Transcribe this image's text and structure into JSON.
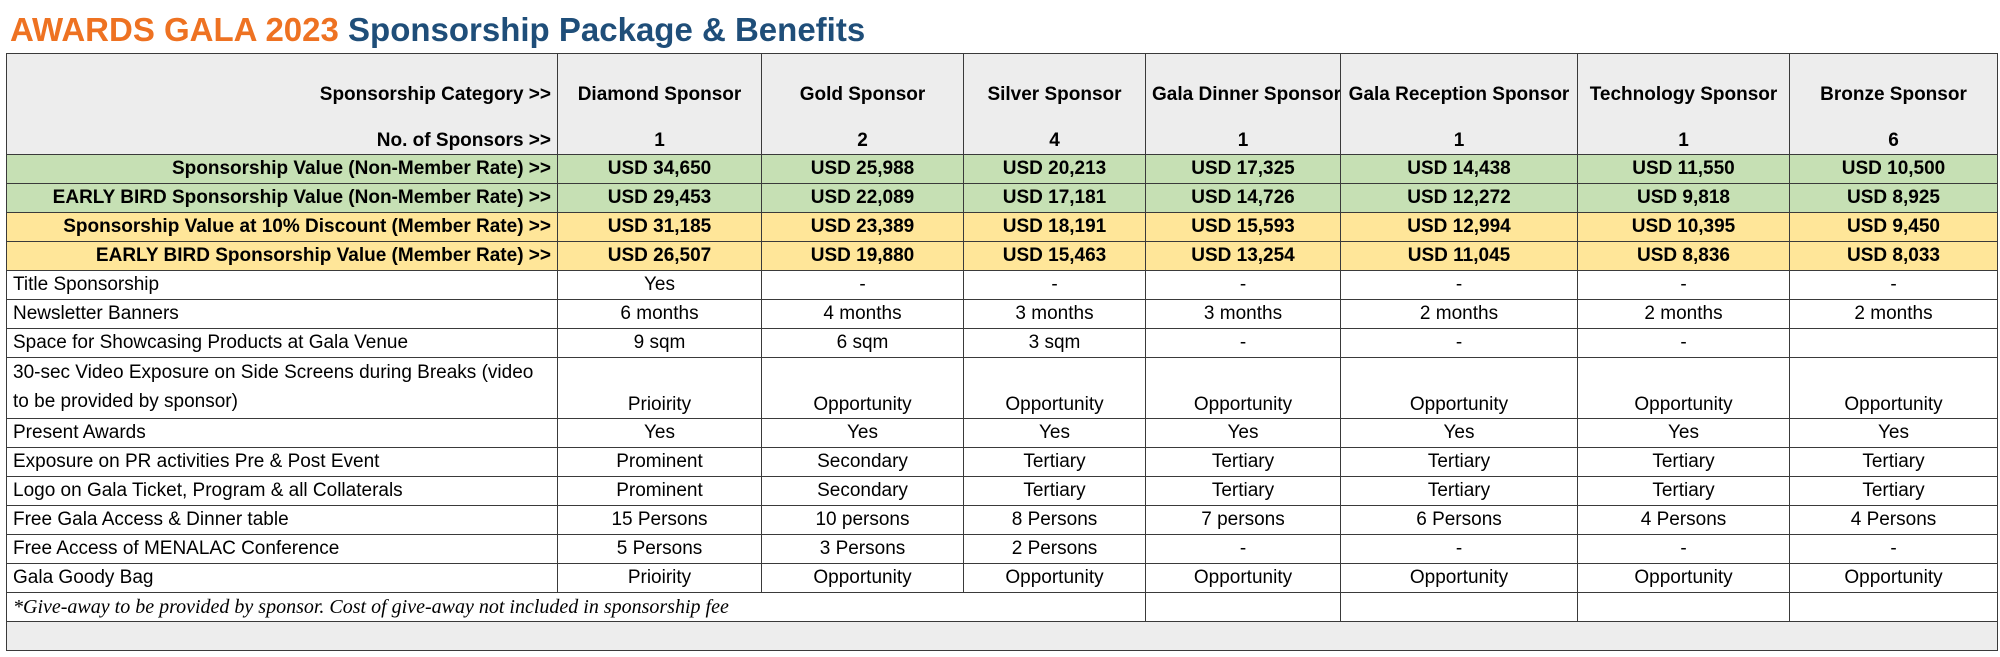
{
  "title": {
    "part1": "AWARDS GALA 2023",
    "part2": "Sponsorship Package & Benefits"
  },
  "header": {
    "category_label": "Sponsorship Category >>",
    "count_label": "No. of Sponsors >>",
    "sponsors": [
      {
        "name": "Diamond Sponsor",
        "count": "1"
      },
      {
        "name": "Gold Sponsor",
        "count": "2"
      },
      {
        "name": "Silver Sponsor",
        "count": "4"
      },
      {
        "name": "Gala Dinner Sponsor",
        "count": "1"
      },
      {
        "name": "Gala Reception Sponsor",
        "count": "1"
      },
      {
        "name": "Technology Sponsor",
        "count": "1"
      },
      {
        "name": "Bronze Sponsor",
        "count": "6"
      }
    ]
  },
  "prices": [
    {
      "label": "Sponsorship Value (Non-Member Rate) >>",
      "tone": "green",
      "values": [
        "USD 34,650",
        "USD 25,988",
        "USD 20,213",
        "USD 17,325",
        "USD 14,438",
        "USD 11,550",
        "USD 10,500"
      ]
    },
    {
      "label": "EARLY BIRD Sponsorship Value (Non-Member Rate) >>",
      "tone": "green",
      "values": [
        "USD 29,453",
        "USD 22,089",
        "USD 17,181",
        "USD 14,726",
        "USD 12,272",
        "USD 9,818",
        "USD 8,925"
      ]
    },
    {
      "label": "Sponsorship Value at 10% Discount (Member Rate) >>",
      "tone": "yellow",
      "values": [
        "USD 31,185",
        "USD 23,389",
        "USD 18,191",
        "USD 15,593",
        "USD 12,994",
        "USD 10,395",
        "USD 9,450"
      ]
    },
    {
      "label": "EARLY BIRD Sponsorship Value (Member Rate) >>",
      "tone": "yellow",
      "values": [
        "USD 26,507",
        "USD 19,880",
        "USD 15,463",
        "USD 13,254",
        "USD 11,045",
        "USD 8,836",
        "USD 8,033"
      ]
    }
  ],
  "benefits": [
    {
      "label": "Title Sponsorship",
      "tall": false,
      "values": [
        "Yes",
        "-",
        "-",
        "-",
        "-",
        "-",
        "-"
      ]
    },
    {
      "label": "Newsletter Banners",
      "tall": false,
      "values": [
        "6 months",
        "4 months",
        "3 months",
        "3 months",
        "2 months",
        "2 months",
        "2 months"
      ]
    },
    {
      "label": "Space for Showcasing Products at Gala Venue",
      "tall": false,
      "values": [
        "9 sqm",
        "6 sqm",
        "3 sqm",
        "-",
        "-",
        "-",
        ""
      ]
    },
    {
      "label": "30-sec Video Exposure on Side Screens during Breaks (video to be provided by sponsor)",
      "tall": true,
      "values": [
        "Prioirity",
        "Opportunity",
        "Opportunity",
        "Opportunity",
        "Opportunity",
        "Opportunity",
        "Opportunity"
      ]
    },
    {
      "label": "Present Awards",
      "tall": false,
      "values": [
        "Yes",
        "Yes",
        "Yes",
        "Yes",
        "Yes",
        "Yes",
        "Yes"
      ]
    },
    {
      "label": "Exposure on PR activities Pre & Post Event",
      "tall": false,
      "values": [
        "Prominent",
        "Secondary",
        "Tertiary",
        "Tertiary",
        "Tertiary",
        "Tertiary",
        "Tertiary"
      ]
    },
    {
      "label": "Logo on Gala Ticket, Program & all Collaterals",
      "tall": false,
      "values": [
        "Prominent",
        "Secondary",
        "Tertiary",
        "Tertiary",
        "Tertiary",
        "Tertiary",
        "Tertiary"
      ]
    },
    {
      "label": "Free Gala Access & Dinner table",
      "tall": false,
      "values": [
        "15 Persons",
        "10 persons",
        "8 Persons",
        "7 persons",
        "6 Persons",
        "4 Persons",
        "4 Persons"
      ]
    },
    {
      "label": "Free Access of MENALAC Conference",
      "tall": false,
      "values": [
        "5 Persons",
        "3 Persons",
        "2 Persons",
        "-",
        "-",
        "-",
        "-"
      ]
    },
    {
      "label": "Gala Goody Bag",
      "tall": false,
      "values": [
        "Prioirity",
        "Opportunity",
        "Opportunity",
        "Opportunity",
        "Opportunity",
        "Opportunity",
        "Opportunity"
      ]
    }
  ],
  "note": "*Give-away to be provided by sponsor. Cost of give-away not included in sponsorship fee",
  "colors": {
    "title_orange": "#ee7222",
    "title_blue": "#1f4e79",
    "green_fill": "#c6e0b4",
    "yellow_fill": "#ffe699",
    "header_fill": "#ededed"
  }
}
